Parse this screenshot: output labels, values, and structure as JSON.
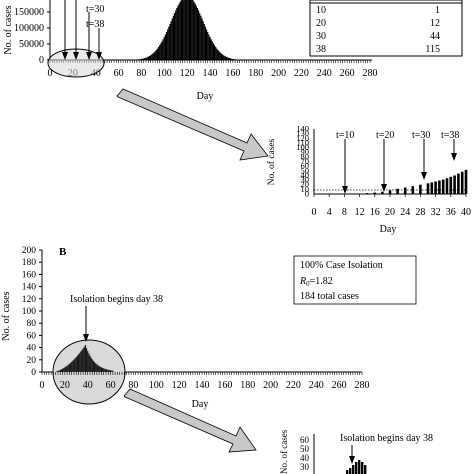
{
  "colors": {
    "bar": "#000000",
    "bar_dark": "#1a1a1a",
    "ellipse_fill": "#d9d9d9",
    "arrow_fill": "#c8c8c8"
  },
  "chart_data": [
    {
      "type": "bar",
      "panel": "A",
      "ylabel": "No. of cases",
      "xlabel": "Day",
      "xlim": [
        0,
        280
      ],
      "ylim": [
        0,
        200000
      ],
      "yticks": [
        "0",
        "50000",
        "100000",
        "150000"
      ],
      "xticks": [
        "0",
        "20",
        "40",
        "60",
        "80",
        "100",
        "120",
        "140",
        "160",
        "180",
        "200",
        "220",
        "240",
        "260",
        "280"
      ],
      "peak_day": 120,
      "peak_value": 200000,
      "annotations": [
        "t=30",
        "t=38"
      ],
      "table": {
        "rows": [
          [
            "10",
            "1"
          ],
          [
            "20",
            "12"
          ],
          [
            "30",
            "44"
          ],
          [
            "38",
            "115"
          ]
        ]
      }
    },
    {
      "type": "bar",
      "panel": "A-inset",
      "ylabel": "No. of cases",
      "xlabel": "Day",
      "xlim": [
        0,
        40
      ],
      "ylim": [
        0,
        140
      ],
      "yticks": [
        "0",
        "10",
        "20",
        "30",
        "40",
        "50",
        "60",
        "70",
        "80",
        "90",
        "100",
        "110",
        "120",
        "130",
        "140"
      ],
      "xticks": [
        "0",
        "4",
        "8",
        "12",
        "16",
        "20",
        "24",
        "28",
        "32",
        "36",
        "40"
      ],
      "annotations": [
        "t=10",
        "t=20",
        "t=30",
        "t=38"
      ],
      "x": [
        10,
        12,
        14,
        16,
        18,
        20,
        22,
        24,
        26,
        28,
        30,
        31,
        32,
        33,
        34,
        35,
        36,
        37,
        38,
        39,
        40
      ],
      "values": [
        1,
        1,
        2,
        3,
        5,
        8,
        11,
        14,
        17,
        20,
        23,
        25,
        27,
        29,
        31,
        34,
        37,
        40,
        44,
        48,
        52
      ]
    },
    {
      "type": "bar",
      "panel": "B",
      "ylabel": "No. of cases",
      "xlabel": "Day",
      "xlim": [
        0,
        280
      ],
      "ylim": [
        0,
        200
      ],
      "yticks": [
        "0",
        "20",
        "40",
        "60",
        "80",
        "100",
        "120",
        "140",
        "160",
        "180",
        "200"
      ],
      "xticks": [
        "0",
        "20",
        "40",
        "60",
        "80",
        "100",
        "120",
        "140",
        "160",
        "180",
        "200",
        "220",
        "240",
        "260",
        "280"
      ],
      "peak_day": 38,
      "peak_value": 44,
      "annotation": "Isolation begins day 38",
      "info": [
        "100% Case Isolation",
        "R",
        "0",
        "=1.82",
        "184 total cases"
      ]
    },
    {
      "type": "bar",
      "panel": "B-inset",
      "ylabel": "No. of cases",
      "yticks": [
        "30",
        "40",
        "50",
        "60"
      ],
      "annotation": "Isolation begins day 38"
    }
  ],
  "labels": {
    "panel_b": "B"
  }
}
